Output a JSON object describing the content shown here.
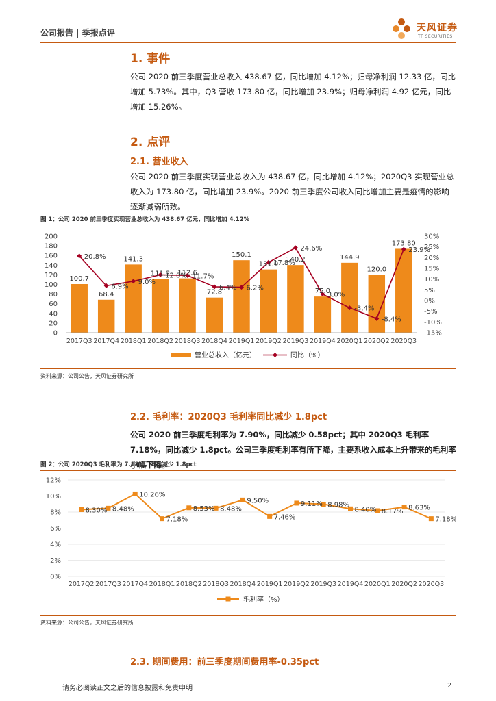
{
  "header": {
    "report_type": "公司报告 | 季报点评",
    "brand_cn": "天风证券",
    "brand_en": "TF SECURITIES"
  },
  "section1": {
    "heading": "1. 事件",
    "body": "公司 2020 前三季度营业总收入 438.67 亿，同比增加 4.12%；归母净利润 12.33 亿，同比增加 5.73%。其中，Q3 营收 173.80 亿，同比增加 23.9%；归母净利润 4.92 亿元，同比增加 15.26%。"
  },
  "section2": {
    "heading": "2. 点评",
    "sub1": {
      "heading": "2.1. 营业收入",
      "body": "公司 2020 前三季度实现营业总收入为 438.67 亿，同比增加 4.12%；2020Q3 实现营业总收入为 173.80 亿，同比增加 23.9%。2020 前三季度公司收入同比增加主要是疫情的影响逐渐减弱所致。"
    },
    "sub2": {
      "heading": "2.2. 毛利率：2020Q3 毛利率同比减少 1.8pct",
      "body": "公司 2020 前三季度毛利率为 7.90%，同比减少 0.58pct；其中 2020Q3 毛利率 7.18%，同比减少 1.8pct。公司三季度毛利率有所下降，主要系收入成本上升带来的毛利率小幅下降。"
    },
    "sub3": {
      "heading": "2.3. 期间费用：前三季度期间费用率-0.35pct"
    }
  },
  "figure1": {
    "title": "图 1：公司 2020 前三季度实现营业总收入为 438.67 亿元，同比增加 4.12%",
    "source": "资料来源：公司公告，天风证券研究所"
  },
  "figure2": {
    "title": "图 2：公司 2020Q3 毛利率为 7.18%，同比减少 1.8pct",
    "source": "资料来源：公司公告，天风证券研究所"
  },
  "footer": {
    "disclaimer": "请务必阅读正文之后的信息披露和免责申明",
    "page": "2"
  },
  "colors": {
    "accent": "#c55a11",
    "bar": "#ee8a1b",
    "line_red": "#a50021"
  },
  "chart_data": [
    {
      "type": "bar",
      "categories": [
        "2017Q3",
        "2017Q4",
        "2018Q1",
        "2018Q2",
        "2018Q3",
        "2018Q4",
        "2019Q1",
        "2019Q2",
        "2019Q3",
        "2019Q4",
        "2020Q1",
        "2020Q2",
        "2020Q3"
      ],
      "series": [
        {
          "name": "营业总收入（亿元）",
          "type": "bar",
          "axis": "left",
          "values": [
            100.7,
            68.4,
            141.3,
            111.2,
            112.6,
            72.8,
            150.1,
            131.0,
            140.2,
            75.0,
            144.9,
            120.0,
            173.8
          ],
          "labels": [
            "100.7",
            "68.4",
            "141.3",
            "111.2",
            "112.6",
            "72.8",
            "150.1",
            "131.0",
            "140.2",
            "75.0",
            "144.9",
            "120.0",
            "173.80"
          ]
        },
        {
          "name": "同比（%）",
          "type": "line",
          "axis": "right",
          "values": [
            20.8,
            6.9,
            9.0,
            12.0,
            11.7,
            6.4,
            6.2,
            17.8,
            24.6,
            3.0,
            -3.4,
            -8.4,
            23.9
          ],
          "labels": [
            "20.8%",
            "6.9%",
            "9.0%",
            "12.0%",
            "11.7%",
            "6.4%",
            "6.2%",
            "17.8%",
            "24.6%",
            "3.0%",
            "-3.4%",
            "-8.4%",
            "23.9%"
          ]
        }
      ],
      "ylim_left": [
        0,
        200
      ],
      "yticks_left": [
        "0",
        "20",
        "40",
        "60",
        "80",
        "100",
        "120",
        "140",
        "160",
        "180",
        "200"
      ],
      "ylim_right": [
        -15,
        30
      ],
      "yticks_right": [
        "-15%",
        "-10%",
        "-5%",
        "0%",
        "5%",
        "10%",
        "15%",
        "20%",
        "25%",
        "30%"
      ],
      "legend_position": "bottom"
    },
    {
      "type": "line",
      "categories": [
        "2017Q2",
        "2017Q3",
        "2017Q4",
        "2018Q1",
        "2018Q2",
        "2018Q3",
        "2018Q4",
        "2019Q1",
        "2019Q2",
        "2019Q3",
        "2019Q4",
        "2020Q1",
        "2020Q2",
        "2020Q3"
      ],
      "series": [
        {
          "name": "毛利率（%）",
          "values": [
            8.3,
            8.48,
            10.26,
            7.18,
            8.53,
            8.48,
            9.5,
            7.46,
            9.11,
            8.98,
            8.4,
            8.17,
            8.63,
            7.18
          ],
          "labels": [
            "8.30%",
            "8.48%",
            "10.26%",
            "7.18%",
            "8.53%",
            "8.48%",
            "9.50%",
            "7.46%",
            "9.11%",
            "8.98%",
            "8.40%",
            "8.17%",
            "8.63%",
            "7.18%"
          ]
        }
      ],
      "ylim": [
        0,
        12
      ],
      "yticks": [
        "0%",
        "2%",
        "4%",
        "6%",
        "8%",
        "10%",
        "12%"
      ],
      "legend_position": "bottom"
    }
  ]
}
